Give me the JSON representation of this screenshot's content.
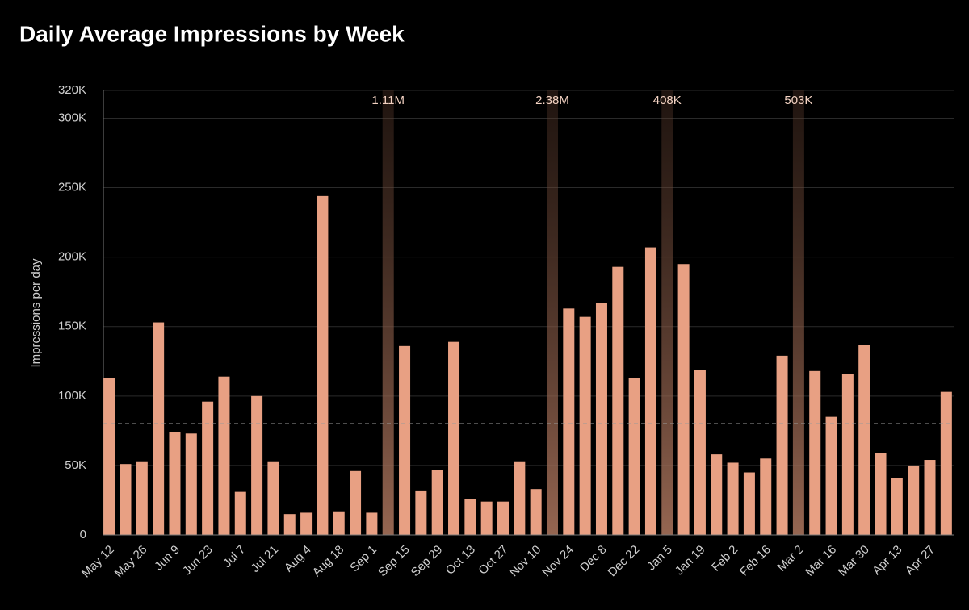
{
  "chart_data": {
    "type": "bar",
    "title": "Daily Average Impressions by Week",
    "y_label": "Impressions per day",
    "categories": [
      "May 12",
      null,
      "May 26",
      null,
      "Jun 9",
      null,
      "Jun 23",
      null,
      "Jul 7",
      null,
      "Jul 21",
      null,
      "Aug 4",
      null,
      "Aug 18",
      null,
      "Sep 1",
      null,
      "Sep 15",
      null,
      "Sep 29",
      null,
      "Oct 13",
      null,
      "Oct 27",
      null,
      "Nov 10",
      null,
      "Nov 24",
      null,
      "Dec 8",
      null,
      "Dec 22",
      null,
      "Jan 5",
      null,
      "Jan 19",
      null,
      "Feb 2",
      null,
      "Feb 16",
      null,
      "Mar 2",
      null,
      "Mar 16",
      null,
      "Mar 30",
      null,
      "Apr 13",
      null,
      "Apr 27",
      null
    ],
    "values": [
      113000,
      51000,
      53000,
      153000,
      74000,
      73000,
      96000,
      114000,
      31000,
      100000,
      53000,
      15000,
      16000,
      244000,
      17000,
      46000,
      16000,
      1110000,
      136000,
      32000,
      47000,
      139000,
      26000,
      24000,
      24000,
      53000,
      33000,
      2380000,
      163000,
      157000,
      167000,
      193000,
      113000,
      207000,
      408000,
      195000,
      119000,
      58000,
      52000,
      45000,
      55000,
      129000,
      503000,
      118000,
      85000,
      116000,
      137000,
      59000,
      41000,
      50000,
      54000,
      103000
    ],
    "value_labels": [
      null,
      null,
      null,
      null,
      null,
      null,
      null,
      null,
      null,
      null,
      null,
      null,
      null,
      null,
      null,
      null,
      null,
      "1.11M",
      null,
      null,
      null,
      null,
      null,
      null,
      null,
      null,
      null,
      "2.38M",
      null,
      null,
      null,
      null,
      null,
      null,
      "408K",
      null,
      null,
      null,
      null,
      null,
      null,
      null,
      "503K",
      null,
      null,
      null,
      null,
      null,
      null,
      null,
      null,
      null
    ],
    "color": "#e8a083",
    "ylim": [
      0,
      320000
    ],
    "yticks": [
      0,
      {
        "value": 50000,
        "label": "50K"
      },
      {
        "value": 100000,
        "label": "100K"
      },
      {
        "value": 150000,
        "label": "150K"
      },
      {
        "value": 200000,
        "label": "200K"
      },
      {
        "value": 250000,
        "label": "250K"
      },
      {
        "value": 300000,
        "label": "300K"
      },
      {
        "value": 320000,
        "label": "320K"
      }
    ],
    "reference_line": 80000,
    "grid": true
  }
}
